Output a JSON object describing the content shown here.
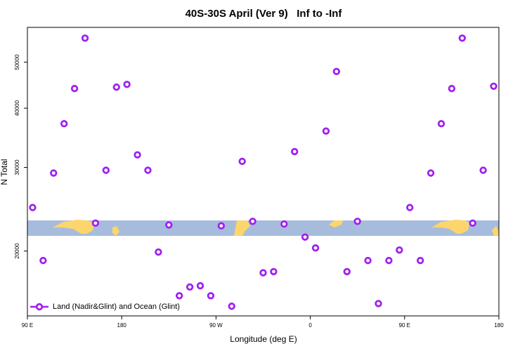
{
  "chart_data": {
    "type": "scatter",
    "title": "40S-30S April (Ver 9)   Inf to -Inf",
    "x_label": "Longitude (deg E)",
    "y_label": "N Total",
    "log_y": true,
    "xlim": [
      90,
      540
    ],
    "xticks": [
      {
        "value": 90,
        "label": "90 E"
      },
      180,
      {
        "value": 270,
        "label": "90 W"
      },
      {
        "value": 360,
        "label": "0"
      },
      {
        "value": 450,
        "label": "90 E"
      },
      {
        "value": 540,
        "label": "180"
      }
    ],
    "ylim": [
      14600,
      59200
    ],
    "yticks": [
      20000,
      30000,
      40000,
      50000
    ],
    "legend_position": "bottom-left",
    "series": [
      {
        "name": "Land (Nadir&Glint) and Ocean (Glint)",
        "color": "#a020f0",
        "x": [
          95,
          105,
          115,
          125,
          135,
          145,
          155,
          165,
          175,
          185,
          195,
          205,
          215,
          225,
          235,
          245,
          255,
          265,
          275,
          285,
          295,
          305,
          315,
          325,
          335,
          345,
          355,
          365,
          375,
          385,
          395,
          405,
          415,
          425,
          435,
          445,
          455,
          465,
          475,
          485,
          495,
          505,
          515,
          525,
          535
        ],
        "values": [
          24700,
          19100,
          29200,
          37100,
          44000,
          56200,
          22900,
          29600,
          44300,
          44900,
          31900,
          29600,
          19900,
          22700,
          16100,
          16800,
          16900,
          16100,
          22600,
          15300,
          30900,
          23100,
          18000,
          18100,
          22800,
          32400,
          21400,
          20300,
          35800,
          47800,
          18100,
          23100,
          19100,
          15500,
          19100,
          20100,
          24700,
          19100,
          29200,
          37100,
          44000,
          56200,
          22900,
          29600,
          44500
        ]
      }
    ]
  }
}
